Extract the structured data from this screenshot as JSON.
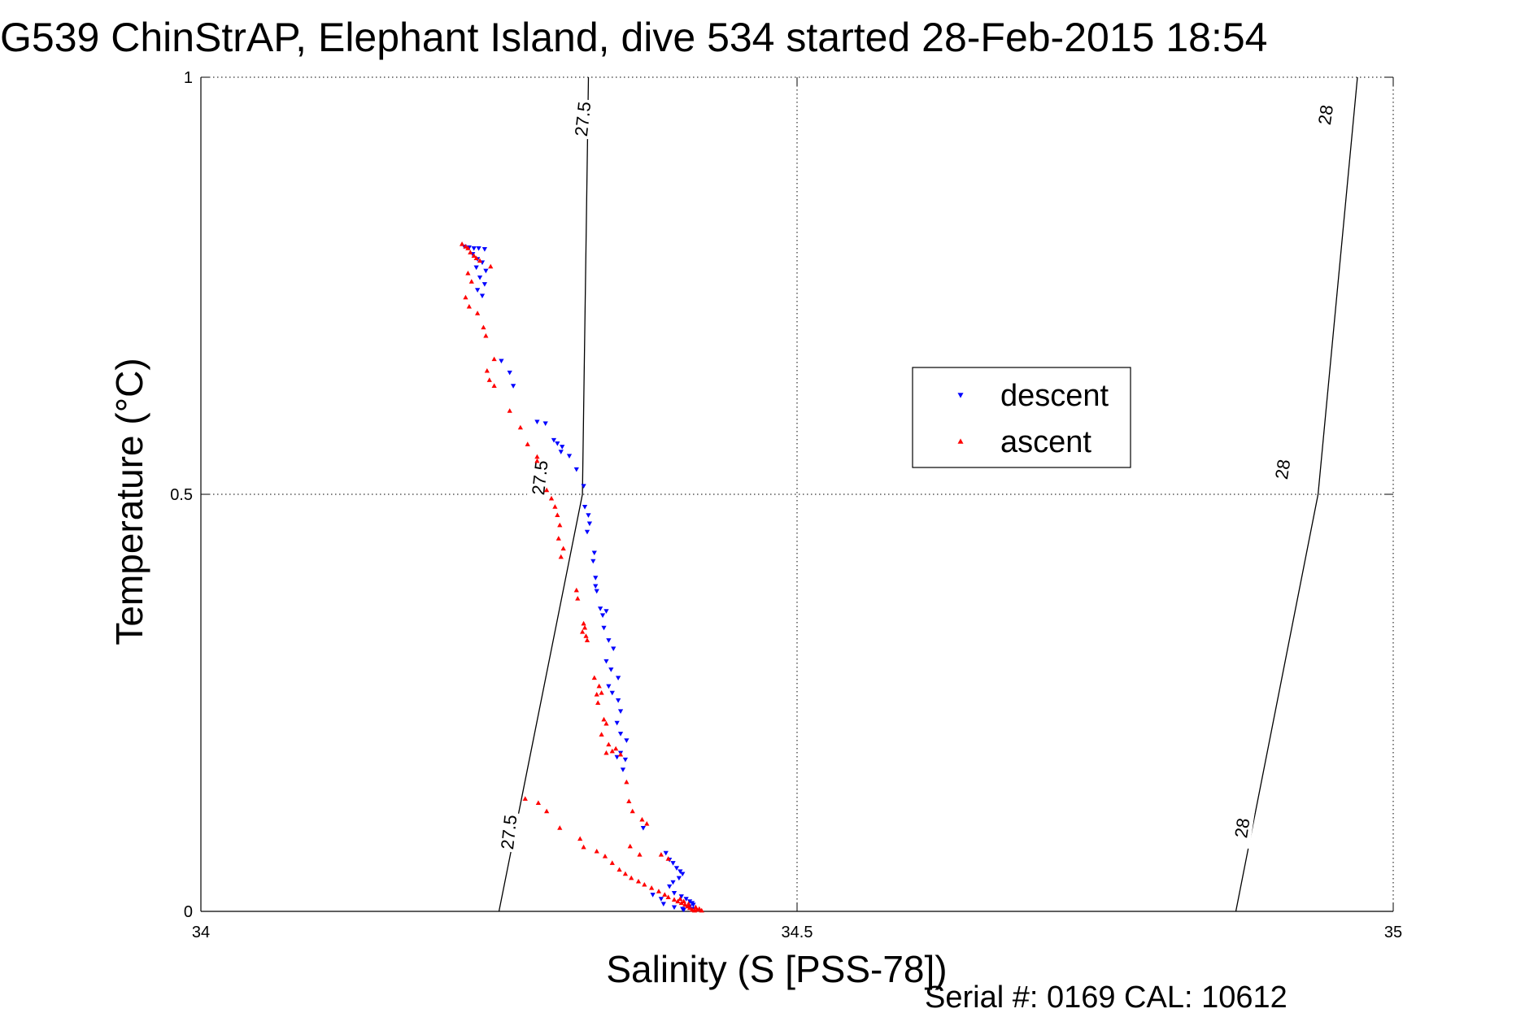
{
  "chart_data": {
    "type": "scatter",
    "title": "G539 ChinStrAP, Elephant Island, dive 534 started 28-Feb-2015 18:54",
    "xlabel": "Salinity (S [PSS-78])",
    "ylabel": "Temperature (°C)",
    "xlim": [
      34,
      35
    ],
    "ylim": [
      0,
      1
    ],
    "xticks": [
      34,
      34.5,
      35
    ],
    "xtick_labels": [
      "34",
      "34.5",
      "35"
    ],
    "yticks": [
      0,
      0.5,
      1
    ],
    "ytick_labels": [
      "0",
      "0.5",
      "1"
    ],
    "grid": true,
    "legend_position": "center-right",
    "footer": "Serial #: 0169 CAL: 10612",
    "density_contours": [
      {
        "label": "27.5",
        "points": [
          [
            34.25,
            0
          ],
          [
            34.32,
            0.5
          ],
          [
            34.32,
            0.5
          ],
          [
            34.325,
            1
          ]
        ],
        "label_positions": [
          [
            34.258,
            0.095
          ],
          [
            34.284,
            0.52
          ],
          [
            34.32,
            0.95
          ]
        ]
      },
      {
        "label": "28",
        "points": [
          [
            34.868,
            0
          ],
          [
            34.937,
            0.5
          ],
          [
            34.97,
            1
          ]
        ],
        "label_positions": [
          [
            34.873,
            0.1
          ],
          [
            34.907,
            0.53
          ],
          [
            34.943,
            0.955
          ]
        ]
      }
    ],
    "series": [
      {
        "name": "descent",
        "color": "#0000ff",
        "marker": "triangle-down",
        "points": [
          [
            34.221,
            0.797
          ],
          [
            34.225,
            0.796
          ],
          [
            34.229,
            0.795
          ],
          [
            34.233,
            0.795
          ],
          [
            34.238,
            0.794
          ],
          [
            34.228,
            0.788
          ],
          [
            34.232,
            0.782
          ],
          [
            34.236,
            0.778
          ],
          [
            34.231,
            0.772
          ],
          [
            34.239,
            0.768
          ],
          [
            34.234,
            0.76
          ],
          [
            34.238,
            0.752
          ],
          [
            34.232,
            0.745
          ],
          [
            34.236,
            0.738
          ],
          [
            34.252,
            0.66
          ],
          [
            34.259,
            0.646
          ],
          [
            34.262,
            0.63
          ],
          [
            34.282,
            0.587
          ],
          [
            34.289,
            0.585
          ],
          [
            34.296,
            0.565
          ],
          [
            34.299,
            0.561
          ],
          [
            34.303,
            0.557
          ],
          [
            34.302,
            0.551
          ],
          [
            34.309,
            0.546
          ],
          [
            34.315,
            0.53
          ],
          [
            34.321,
            0.51
          ],
          [
            34.322,
            0.485
          ],
          [
            34.325,
            0.475
          ],
          [
            34.326,
            0.465
          ],
          [
            34.324,
            0.455
          ],
          [
            34.33,
            0.43
          ],
          [
            34.329,
            0.42
          ],
          [
            34.331,
            0.4
          ],
          [
            34.331,
            0.39
          ],
          [
            34.332,
            0.384
          ],
          [
            34.335,
            0.363
          ],
          [
            34.34,
            0.36
          ],
          [
            34.337,
            0.355
          ],
          [
            34.338,
            0.34
          ],
          [
            34.342,
            0.325
          ],
          [
            34.346,
            0.315
          ],
          [
            34.34,
            0.3
          ],
          [
            34.344,
            0.29
          ],
          [
            34.35,
            0.28
          ],
          [
            34.342,
            0.27
          ],
          [
            34.345,
            0.262
          ],
          [
            34.35,
            0.253
          ],
          [
            34.352,
            0.24
          ],
          [
            34.349,
            0.226
          ],
          [
            34.352,
            0.213
          ],
          [
            34.357,
            0.205
          ],
          [
            34.352,
            0.19
          ],
          [
            34.349,
            0.185
          ],
          [
            34.356,
            0.182
          ],
          [
            34.354,
            0.17
          ],
          [
            34.371,
            0.1
          ],
          [
            34.39,
            0.07
          ],
          [
            34.393,
            0.062
          ],
          [
            34.396,
            0.058
          ],
          [
            34.399,
            0.052
          ],
          [
            34.402,
            0.048
          ],
          [
            34.404,
            0.045
          ],
          [
            34.401,
            0.04
          ],
          [
            34.396,
            0.035
          ],
          [
            34.393,
            0.03
          ],
          [
            34.397,
            0.022
          ],
          [
            34.403,
            0.018
          ],
          [
            34.407,
            0.015
          ],
          [
            34.41,
            0.012
          ],
          [
            34.412,
            0.01
          ],
          [
            34.413,
            0.008
          ],
          [
            34.41,
            0.006
          ],
          [
            34.404,
            0.003
          ],
          [
            34.397,
            0.005
          ],
          [
            34.388,
            0.009
          ],
          [
            34.386,
            0.015
          ],
          [
            34.379,
            0.02
          ],
          [
            34.405,
            0.002
          ],
          [
            34.412,
            0.003
          ]
        ]
      },
      {
        "name": "ascent",
        "color": "#ff0000",
        "marker": "triangle-up",
        "points": [
          [
            34.219,
            0.8
          ],
          [
            34.222,
            0.797
          ],
          [
            34.224,
            0.795
          ],
          [
            34.226,
            0.79
          ],
          [
            34.229,
            0.786
          ],
          [
            34.231,
            0.783
          ],
          [
            34.234,
            0.78
          ],
          [
            34.243,
            0.773
          ],
          [
            34.224,
            0.765
          ],
          [
            34.227,
            0.755
          ],
          [
            34.222,
            0.736
          ],
          [
            34.225,
            0.725
          ],
          [
            34.232,
            0.717
          ],
          [
            34.237,
            0.7
          ],
          [
            34.239,
            0.69
          ],
          [
            34.246,
            0.662
          ],
          [
            34.24,
            0.648
          ],
          [
            34.242,
            0.637
          ],
          [
            34.246,
            0.63
          ],
          [
            34.259,
            0.6
          ],
          [
            34.268,
            0.58
          ],
          [
            34.274,
            0.56
          ],
          [
            34.282,
            0.545
          ],
          [
            34.282,
            0.54
          ],
          [
            34.29,
            0.505
          ],
          [
            34.294,
            0.495
          ],
          [
            34.297,
            0.485
          ],
          [
            34.299,
            0.475
          ],
          [
            34.301,
            0.463
          ],
          [
            34.3,
            0.447
          ],
          [
            34.304,
            0.435
          ],
          [
            34.302,
            0.425
          ],
          [
            34.315,
            0.385
          ],
          [
            34.316,
            0.375
          ],
          [
            34.321,
            0.345
          ],
          [
            34.322,
            0.34
          ],
          [
            34.32,
            0.335
          ],
          [
            34.323,
            0.33
          ],
          [
            34.324,
            0.325
          ],
          [
            34.33,
            0.28
          ],
          [
            34.334,
            0.27
          ],
          [
            34.336,
            0.262
          ],
          [
            34.332,
            0.26
          ],
          [
            34.333,
            0.25
          ],
          [
            34.338,
            0.23
          ],
          [
            34.34,
            0.225
          ],
          [
            34.336,
            0.212
          ],
          [
            34.342,
            0.2
          ],
          [
            34.34,
            0.19
          ],
          [
            34.345,
            0.192
          ],
          [
            34.348,
            0.195
          ],
          [
            34.352,
            0.188
          ],
          [
            34.357,
            0.155
          ],
          [
            34.359,
            0.132
          ],
          [
            34.362,
            0.12
          ],
          [
            34.37,
            0.11
          ],
          [
            34.374,
            0.105
          ],
          [
            34.272,
            0.135
          ],
          [
            34.283,
            0.13
          ],
          [
            34.29,
            0.12
          ],
          [
            34.301,
            0.1
          ],
          [
            34.318,
            0.087
          ],
          [
            34.321,
            0.077
          ],
          [
            34.332,
            0.072
          ],
          [
            34.339,
            0.066
          ],
          [
            34.345,
            0.058
          ],
          [
            34.351,
            0.05
          ],
          [
            34.356,
            0.045
          ],
          [
            34.361,
            0.04
          ],
          [
            34.367,
            0.036
          ],
          [
            34.372,
            0.032
          ],
          [
            34.378,
            0.028
          ],
          [
            34.384,
            0.024
          ],
          [
            34.389,
            0.02
          ],
          [
            34.392,
            0.017
          ],
          [
            34.397,
            0.014
          ],
          [
            34.4,
            0.012
          ],
          [
            34.403,
            0.01
          ],
          [
            34.406,
            0.008
          ],
          [
            34.408,
            0.006
          ],
          [
            34.41,
            0.004
          ],
          [
            34.412,
            0.002
          ],
          [
            34.414,
            0.001
          ],
          [
            34.416,
            0.002
          ],
          [
            34.418,
            0.003
          ],
          [
            34.42,
            0.001
          ],
          [
            34.415,
            0.005
          ],
          [
            34.409,
            0.009
          ],
          [
            34.405,
            0.012
          ],
          [
            34.402,
            0.015
          ],
          [
            34.386,
            0.068
          ],
          [
            34.392,
            0.063
          ],
          [
            34.368,
            0.068
          ],
          [
            34.36,
            0.078
          ]
        ]
      }
    ]
  }
}
